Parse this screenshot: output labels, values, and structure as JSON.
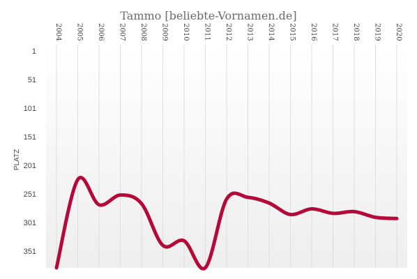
{
  "chart_data": {
    "type": "line",
    "title": "Tammo [beliebte-Vornamen.de]",
    "ylabel": "PLATZ",
    "xlabel": "",
    "x": [
      "2004",
      "2005",
      "2006",
      "2007",
      "2008",
      "2009",
      "2010",
      "2011",
      "2012",
      "2013",
      "2014",
      "2015",
      "2016",
      "2017",
      "2018",
      "2019",
      "2020"
    ],
    "y_ticks": [
      1,
      51,
      101,
      151,
      201,
      251,
      301,
      351
    ],
    "ylim": [
      1,
      389
    ],
    "y_inverted": true,
    "grid": "vertical",
    "series": [
      {
        "color": "#b5093a",
        "values": [
          390,
          226,
          270,
          253,
          268,
          341,
          333,
          380,
          260,
          257,
          267,
          287,
          277,
          285,
          282,
          292,
          294
        ]
      }
    ]
  }
}
